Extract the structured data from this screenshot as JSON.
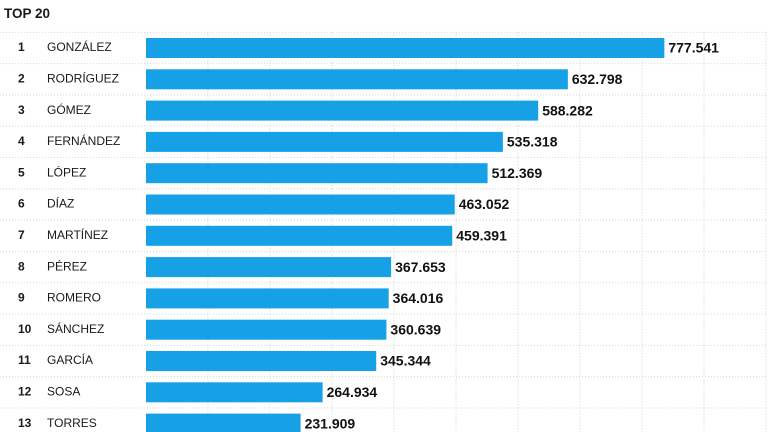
{
  "title": "TOP 20",
  "colors": {
    "bar": "#16a1e7",
    "grid": "#cfcfcf",
    "row_divider": "#d6d6d6"
  },
  "chart_data": {
    "type": "bar",
    "orientation": "horizontal",
    "title": "TOP 20",
    "xlabel": "",
    "ylabel": "",
    "grid": true,
    "gridline_style": "dotted-vertical",
    "value_format": "dot-thousands",
    "xlim": [
      0,
      930000
    ],
    "ranks": [
      "1",
      "2",
      "3",
      "4",
      "5",
      "6",
      "7",
      "8",
      "9",
      "10",
      "11",
      "12",
      "13"
    ],
    "categories": [
      "GONZÁLEZ",
      "RODRÍGUEZ",
      "GÓMEZ",
      "FERNÁNDEZ",
      "LÓPEZ",
      "DÍAZ",
      "MARTÍNEZ",
      "PÉREZ",
      "ROMERO",
      "SÁNCHEZ",
      "GARCÍA",
      "SOSA",
      "TORRES"
    ],
    "values": [
      777541,
      632798,
      588282,
      535318,
      512369,
      463052,
      459391,
      367653,
      364016,
      360639,
      345344,
      264934,
      231909
    ],
    "value_labels": [
      "777.541",
      "632.798",
      "588.282",
      "535.318",
      "512.369",
      "463.052",
      "459.391",
      "367.653",
      "364.016",
      "360.639",
      "345.344",
      "264.934",
      "231.909"
    ]
  }
}
